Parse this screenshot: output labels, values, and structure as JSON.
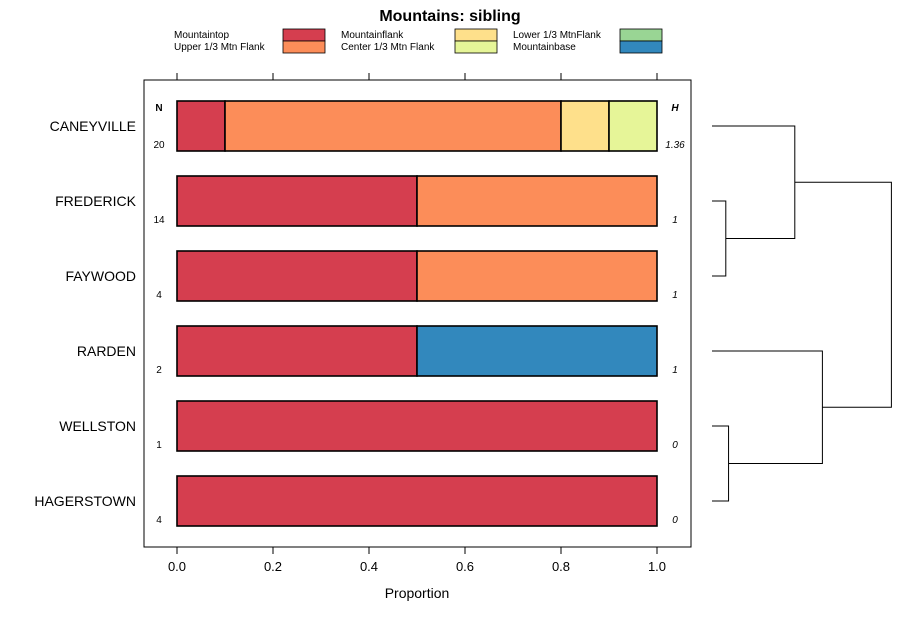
{
  "chart_data": {
    "type": "bar",
    "orientation": "horizontal",
    "stacked": true,
    "title": "Mountains: sibling",
    "xlabel": "Proportion",
    "ylabel": "",
    "xlim": [
      0,
      1
    ],
    "x_ticks": [
      "0.0",
      "0.2",
      "0.4",
      "0.6",
      "0.8",
      "1.0"
    ],
    "tick_values": [
      0,
      0.2,
      0.4,
      0.6,
      0.8,
      1.0
    ],
    "n_header": "N",
    "h_header": "H",
    "legend": {
      "placement": "top",
      "items": [
        {
          "label": "Mountaintop",
          "color": "#d53e4f"
        },
        {
          "label": "Upper 1/3 Mtn Flank",
          "color": "#fc8d59"
        },
        {
          "label": "Mountainflank",
          "color": "#fee08b"
        },
        {
          "label": "Center 1/3 Mtn Flank",
          "color": "#e6f598"
        },
        {
          "label": "Lower 1/3 MtnFlank",
          "color": "#99d594"
        },
        {
          "label": "Mountainbase",
          "color": "#3288bd"
        }
      ]
    },
    "rows": [
      {
        "label": "CANEYVILLE",
        "n": "20",
        "h": "1.36",
        "segments": [
          {
            "category": "Mountaintop",
            "value": 0.1,
            "color": "#d53e4f"
          },
          {
            "category": "Upper 1/3 Mtn Flank",
            "value": 0.7,
            "color": "#fc8d59"
          },
          {
            "category": "Mountainflank",
            "value": 0.1,
            "color": "#fee08b"
          },
          {
            "category": "Center 1/3 Mtn Flank",
            "value": 0.1,
            "color": "#e6f598"
          }
        ]
      },
      {
        "label": "FREDERICK",
        "n": "14",
        "h": "1",
        "segments": [
          {
            "category": "Mountaintop",
            "value": 0.5,
            "color": "#d53e4f"
          },
          {
            "category": "Upper 1/3 Mtn Flank",
            "value": 0.5,
            "color": "#fc8d59"
          }
        ]
      },
      {
        "label": "FAYWOOD",
        "n": "4",
        "h": "1",
        "segments": [
          {
            "category": "Mountaintop",
            "value": 0.5,
            "color": "#d53e4f"
          },
          {
            "category": "Upper 1/3 Mtn Flank",
            "value": 0.5,
            "color": "#fc8d59"
          }
        ]
      },
      {
        "label": "RARDEN",
        "n": "2",
        "h": "1",
        "segments": [
          {
            "category": "Mountaintop",
            "value": 0.5,
            "color": "#d53e4f"
          },
          {
            "category": "Mountainbase",
            "value": 0.5,
            "color": "#3288bd"
          }
        ]
      },
      {
        "label": "WELLSTON",
        "n": "1",
        "h": "0",
        "segments": [
          {
            "category": "Mountaintop",
            "value": 1.0,
            "color": "#d53e4f"
          }
        ]
      },
      {
        "label": "HAGERSTOWN",
        "n": "4",
        "h": "0",
        "segments": [
          {
            "category": "Mountaintop",
            "value": 1.0,
            "color": "#d53e4f"
          }
        ]
      }
    ],
    "dendrogram": {
      "description": "hierarchical clustering of rows",
      "merges": [
        {
          "members": [
            "FREDERICK",
            "FAYWOOD"
          ],
          "height": 0.1
        },
        {
          "members": [
            "CANEYVILLE",
            "FREDERICK+FAYWOOD"
          ],
          "height": 0.6
        },
        {
          "members": [
            "WELLSTON",
            "HAGERSTOWN"
          ],
          "height": 0.12
        },
        {
          "members": [
            "RARDEN",
            "WELLSTON+HAGERSTOWN"
          ],
          "height": 0.8
        },
        {
          "members": [
            "top",
            "bottom"
          ],
          "height": 1.3
        }
      ]
    }
  }
}
